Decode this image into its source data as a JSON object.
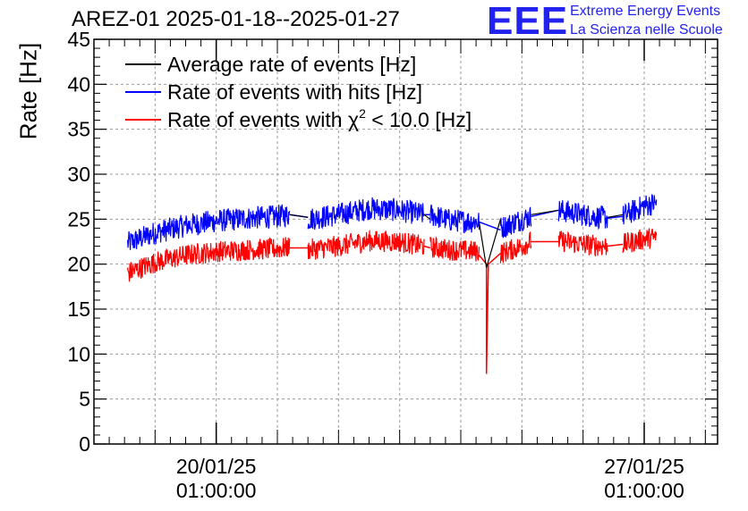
{
  "header": {
    "title": "AREZ-01 2025-01-18--2025-01-27",
    "logo_text": "EEE",
    "logo_line1": "Extreme Energy Events",
    "logo_line2": "La Scienza nelle Scuole"
  },
  "chart_data": {
    "type": "line",
    "title": "AREZ-01 2025-01-18--2025-01-27",
    "xlabel": "",
    "ylabel": "Rate [Hz]",
    "ylim": [
      0,
      45
    ],
    "yticks": [
      0,
      5,
      10,
      15,
      20,
      25,
      30,
      35,
      40,
      45
    ],
    "xlim_days": [
      0,
      10.2
    ],
    "x_unit": "days since 2025-01-18 01:00:00",
    "xticks": [
      {
        "day": 2,
        "label_line1": "20/01/25",
        "label_line2": "01:00:00"
      },
      {
        "day": 9,
        "label_line1": "27/01/25",
        "label_line2": "01:00:00"
      }
    ],
    "grid": true,
    "legend_position": "top-left",
    "legend": [
      {
        "key": "avg",
        "label": "Average rate of events [Hz]",
        "color": "#000000"
      },
      {
        "key": "hits",
        "label": "Rate of events with hits [Hz]",
        "color": "#0000ff"
      },
      {
        "key": "chi2",
        "label_prefix": "Rate of events with ",
        "label_chi": "χ",
        "label_sup": "2",
        "label_suffix": " < 10.0 [Hz]",
        "color": "#ff0000"
      }
    ],
    "series": [
      {
        "name": "Rate of events with hits [Hz]",
        "color": "#0000ff",
        "noise_amplitude": 1.3,
        "segments": [
          {
            "x": [
              0.55,
              1.0,
              1.5,
              2.0,
              2.5,
              3.0,
              3.2
            ],
            "y": [
              22.3,
              23.5,
              24.3,
              24.8,
              25.1,
              25.3,
              25.5
            ]
          },
          {
            "x": [
              3.5,
              4.0,
              4.5,
              5.0,
              5.4
            ],
            "y": [
              25.0,
              25.5,
              26.2,
              26.0,
              25.5
            ]
          },
          {
            "x": [
              5.5,
              5.8,
              6.3
            ],
            "y": [
              25.5,
              24.9,
              24.7
            ]
          },
          {
            "x": [
              6.65,
              7.0,
              7.15
            ],
            "y": [
              24.0,
              25.0,
              25.3
            ]
          },
          {
            "x": [
              7.6,
              8.0,
              8.4
            ],
            "y": [
              26.0,
              25.5,
              25.1
            ]
          },
          {
            "x": [
              8.65,
              9.0,
              9.2
            ],
            "y": [
              25.3,
              26.5,
              26.8
            ]
          }
        ],
        "joins": [
          {
            "x": [
              3.2,
              3.5
            ],
            "y": [
              25.5,
              25.2
            ]
          },
          {
            "x": [
              5.4,
              5.5
            ],
            "y": [
              25.5,
              25.5
            ]
          },
          {
            "x": [
              6.3,
              6.65
            ],
            "y": [
              24.7,
              23.8
            ]
          },
          {
            "x": [
              7.15,
              7.6
            ],
            "y": [
              25.3,
              26.0
            ]
          },
          {
            "x": [
              8.4,
              8.65
            ],
            "y": [
              25.1,
              25.3
            ]
          }
        ]
      },
      {
        "name": "Rate of events with χ2 < 10.0 [Hz]",
        "color": "#ff0000",
        "noise_amplitude": 1.2,
        "segments": [
          {
            "x": [
              0.55,
              1.0,
              1.5,
              2.0,
              2.5,
              3.0,
              3.2
            ],
            "y": [
              19.0,
              20.2,
              21.0,
              21.4,
              21.6,
              21.7,
              21.9
            ]
          },
          {
            "x": [
              3.5,
              4.0,
              4.5,
              5.0,
              5.4
            ],
            "y": [
              21.6,
              22.0,
              22.6,
              22.5,
              22.0
            ]
          },
          {
            "x": [
              5.5,
              5.8,
              6.3
            ],
            "y": [
              21.9,
              21.6,
              21.4
            ]
          },
          {
            "x": [
              6.65,
              7.0,
              7.15
            ],
            "y": [
              21.2,
              22.0,
              22.5
            ]
          },
          {
            "x": [
              7.6,
              8.0,
              8.4
            ],
            "y": [
              22.6,
              22.2,
              22.0
            ]
          },
          {
            "x": [
              8.65,
              9.0,
              9.2
            ],
            "y": [
              22.2,
              22.8,
              23.0
            ]
          }
        ],
        "joins": [
          {
            "x": [
              3.2,
              3.5
            ],
            "y": [
              21.8,
              21.8
            ]
          },
          {
            "x": [
              5.4,
              5.5
            ],
            "y": [
              22.0,
              21.8
            ]
          },
          {
            "x": [
              6.3,
              6.42,
              6.42,
              6.45,
              6.65
            ],
            "y": [
              21.0,
              20.0,
              7.8,
              20.0,
              21.2
            ]
          },
          {
            "x": [
              7.15,
              7.6
            ],
            "y": [
              22.5,
              22.5
            ]
          },
          {
            "x": [
              8.4,
              8.65
            ],
            "y": [
              22.0,
              22.2
            ]
          }
        ]
      },
      {
        "name": "Average rate of events [Hz]",
        "color": "#000000",
        "noise_amplitude": 0,
        "segments": [
          {
            "x": [
              3.2,
              3.5
            ],
            "y": [
              25.5,
              25.2
            ]
          },
          {
            "x": [
              5.4,
              5.5
            ],
            "y": [
              25.5,
              25.0
            ]
          },
          {
            "x": [
              6.3,
              6.42,
              6.65
            ],
            "y": [
              24.7,
              19.6,
              25.0
            ]
          },
          {
            "x": [
              7.15,
              7.6
            ],
            "y": [
              25.5,
              26.0
            ]
          },
          {
            "x": [
              8.4,
              8.65
            ],
            "y": [
              25.2,
              25.5
            ]
          }
        ],
        "joins": []
      }
    ]
  }
}
